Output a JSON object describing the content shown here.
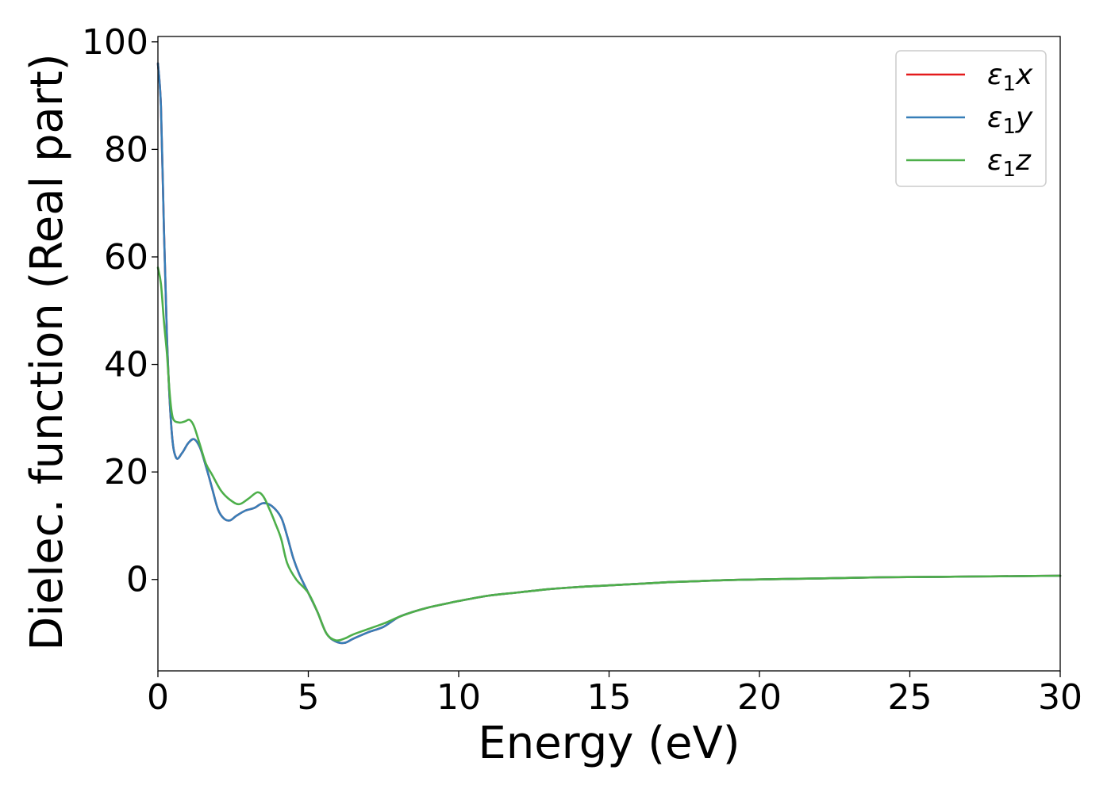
{
  "chart_data": {
    "type": "line",
    "title": "",
    "xlabel": "Energy (eV)",
    "ylabel": "Dielec. function (Real part)",
    "xlim": [
      0,
      30
    ],
    "ylim": [
      -17,
      101
    ],
    "xticks": [
      0,
      5,
      10,
      15,
      20,
      25,
      30
    ],
    "yticks": [
      0,
      20,
      40,
      60,
      80,
      100
    ],
    "grid": false,
    "legend_position": "top-right",
    "colors": {
      "x": "#e41a1c",
      "y": "#377eb8",
      "z": "#4daf4a"
    },
    "series": [
      {
        "name": "ε₁x",
        "legend_symbol": "ε",
        "legend_sub": "1",
        "legend_var": "x",
        "color": "#e41a1c",
        "points": [
          [
            0,
            96
          ],
          [
            0.1,
            88
          ],
          [
            0.2,
            65
          ],
          [
            0.3,
            45
          ],
          [
            0.45,
            28
          ],
          [
            0.6,
            22.7
          ],
          [
            0.8,
            23.5
          ],
          [
            1.0,
            25.3
          ],
          [
            1.2,
            26.1
          ],
          [
            1.4,
            24.5
          ],
          [
            1.6,
            21
          ],
          [
            1.8,
            17
          ],
          [
            2.0,
            13
          ],
          [
            2.2,
            11.3
          ],
          [
            2.4,
            11
          ],
          [
            2.6,
            11.8
          ],
          [
            2.9,
            12.8
          ],
          [
            3.2,
            13.3
          ],
          [
            3.5,
            14.2
          ],
          [
            3.8,
            13.6
          ],
          [
            4.1,
            11.5
          ],
          [
            4.3,
            8
          ],
          [
            4.5,
            4
          ],
          [
            4.7,
            1
          ],
          [
            5.0,
            -2.5
          ],
          [
            5.3,
            -6
          ],
          [
            5.6,
            -10
          ],
          [
            5.9,
            -11.5
          ],
          [
            6.2,
            -11.8
          ],
          [
            6.5,
            -11
          ],
          [
            7.0,
            -9.8
          ],
          [
            7.5,
            -8.8
          ],
          [
            8.0,
            -7
          ],
          [
            8.5,
            -6
          ],
          [
            9.0,
            -5.2
          ],
          [
            9.5,
            -4.6
          ],
          [
            10,
            -4
          ],
          [
            11,
            -3
          ],
          [
            12,
            -2.4
          ],
          [
            13,
            -1.8
          ],
          [
            14,
            -1.4
          ],
          [
            15,
            -1.1
          ],
          [
            16,
            -0.8
          ],
          [
            17,
            -0.5
          ],
          [
            18,
            -0.3
          ],
          [
            19,
            -0.1
          ],
          [
            20,
            0
          ],
          [
            22,
            0.2
          ],
          [
            24,
            0.4
          ],
          [
            26,
            0.5
          ],
          [
            28,
            0.6
          ],
          [
            30,
            0.7
          ]
        ]
      },
      {
        "name": "ε₁y",
        "legend_symbol": "ε",
        "legend_sub": "1",
        "legend_var": "y",
        "color": "#377eb8",
        "points": [
          [
            0,
            96
          ],
          [
            0.1,
            88
          ],
          [
            0.2,
            65
          ],
          [
            0.3,
            45
          ],
          [
            0.45,
            28
          ],
          [
            0.6,
            22.7
          ],
          [
            0.8,
            23.5
          ],
          [
            1.0,
            25.3
          ],
          [
            1.2,
            26.1
          ],
          [
            1.4,
            24.5
          ],
          [
            1.6,
            21
          ],
          [
            1.8,
            17
          ],
          [
            2.0,
            13
          ],
          [
            2.2,
            11.3
          ],
          [
            2.4,
            11
          ],
          [
            2.6,
            11.8
          ],
          [
            2.9,
            12.8
          ],
          [
            3.2,
            13.3
          ],
          [
            3.5,
            14.2
          ],
          [
            3.8,
            13.6
          ],
          [
            4.1,
            11.5
          ],
          [
            4.3,
            8
          ],
          [
            4.5,
            4
          ],
          [
            4.7,
            1
          ],
          [
            5.0,
            -2.5
          ],
          [
            5.3,
            -6
          ],
          [
            5.6,
            -10
          ],
          [
            5.9,
            -11.5
          ],
          [
            6.2,
            -11.8
          ],
          [
            6.5,
            -11
          ],
          [
            7.0,
            -9.8
          ],
          [
            7.5,
            -8.8
          ],
          [
            8.0,
            -7
          ],
          [
            8.5,
            -6
          ],
          [
            9.0,
            -5.2
          ],
          [
            9.5,
            -4.6
          ],
          [
            10,
            -4
          ],
          [
            11,
            -3
          ],
          [
            12,
            -2.4
          ],
          [
            13,
            -1.8
          ],
          [
            14,
            -1.4
          ],
          [
            15,
            -1.1
          ],
          [
            16,
            -0.8
          ],
          [
            17,
            -0.5
          ],
          [
            18,
            -0.3
          ],
          [
            19,
            -0.1
          ],
          [
            20,
            0
          ],
          [
            22,
            0.2
          ],
          [
            24,
            0.4
          ],
          [
            26,
            0.5
          ],
          [
            28,
            0.6
          ],
          [
            30,
            0.7
          ]
        ]
      },
      {
        "name": "ε₁z",
        "legend_symbol": "ε",
        "legend_sub": "1",
        "legend_var": "z",
        "color": "#4daf4a",
        "points": [
          [
            0,
            58
          ],
          [
            0.1,
            55
          ],
          [
            0.2,
            48
          ],
          [
            0.3,
            42
          ],
          [
            0.4,
            34
          ],
          [
            0.5,
            30
          ],
          [
            0.7,
            29.2
          ],
          [
            0.9,
            29.4
          ],
          [
            1.05,
            29.7
          ],
          [
            1.2,
            28.5
          ],
          [
            1.4,
            25
          ],
          [
            1.6,
            21.5
          ],
          [
            1.8,
            19.5
          ],
          [
            2.1,
            16.5
          ],
          [
            2.4,
            14.8
          ],
          [
            2.7,
            14
          ],
          [
            3.0,
            15
          ],
          [
            3.3,
            16.2
          ],
          [
            3.5,
            15.5
          ],
          [
            3.7,
            13.2
          ],
          [
            3.9,
            10.5
          ],
          [
            4.1,
            7.5
          ],
          [
            4.3,
            3
          ],
          [
            4.6,
            0
          ],
          [
            5.0,
            -2.5
          ],
          [
            5.3,
            -6
          ],
          [
            5.6,
            -10
          ],
          [
            5.9,
            -11.3
          ],
          [
            6.2,
            -11
          ],
          [
            6.5,
            -10.2
          ],
          [
            7.0,
            -9.2
          ],
          [
            7.5,
            -8.2
          ],
          [
            8.0,
            -7
          ],
          [
            8.5,
            -6
          ],
          [
            9.0,
            -5.2
          ],
          [
            9.5,
            -4.6
          ],
          [
            10,
            -4
          ],
          [
            11,
            -3
          ],
          [
            12,
            -2.4
          ],
          [
            13,
            -1.8
          ],
          [
            14,
            -1.4
          ],
          [
            15,
            -1.1
          ],
          [
            16,
            -0.8
          ],
          [
            17,
            -0.5
          ],
          [
            18,
            -0.3
          ],
          [
            19,
            -0.1
          ],
          [
            20,
            0
          ],
          [
            22,
            0.2
          ],
          [
            24,
            0.4
          ],
          [
            26,
            0.5
          ],
          [
            28,
            0.6
          ],
          [
            30,
            0.7
          ]
        ]
      }
    ]
  }
}
